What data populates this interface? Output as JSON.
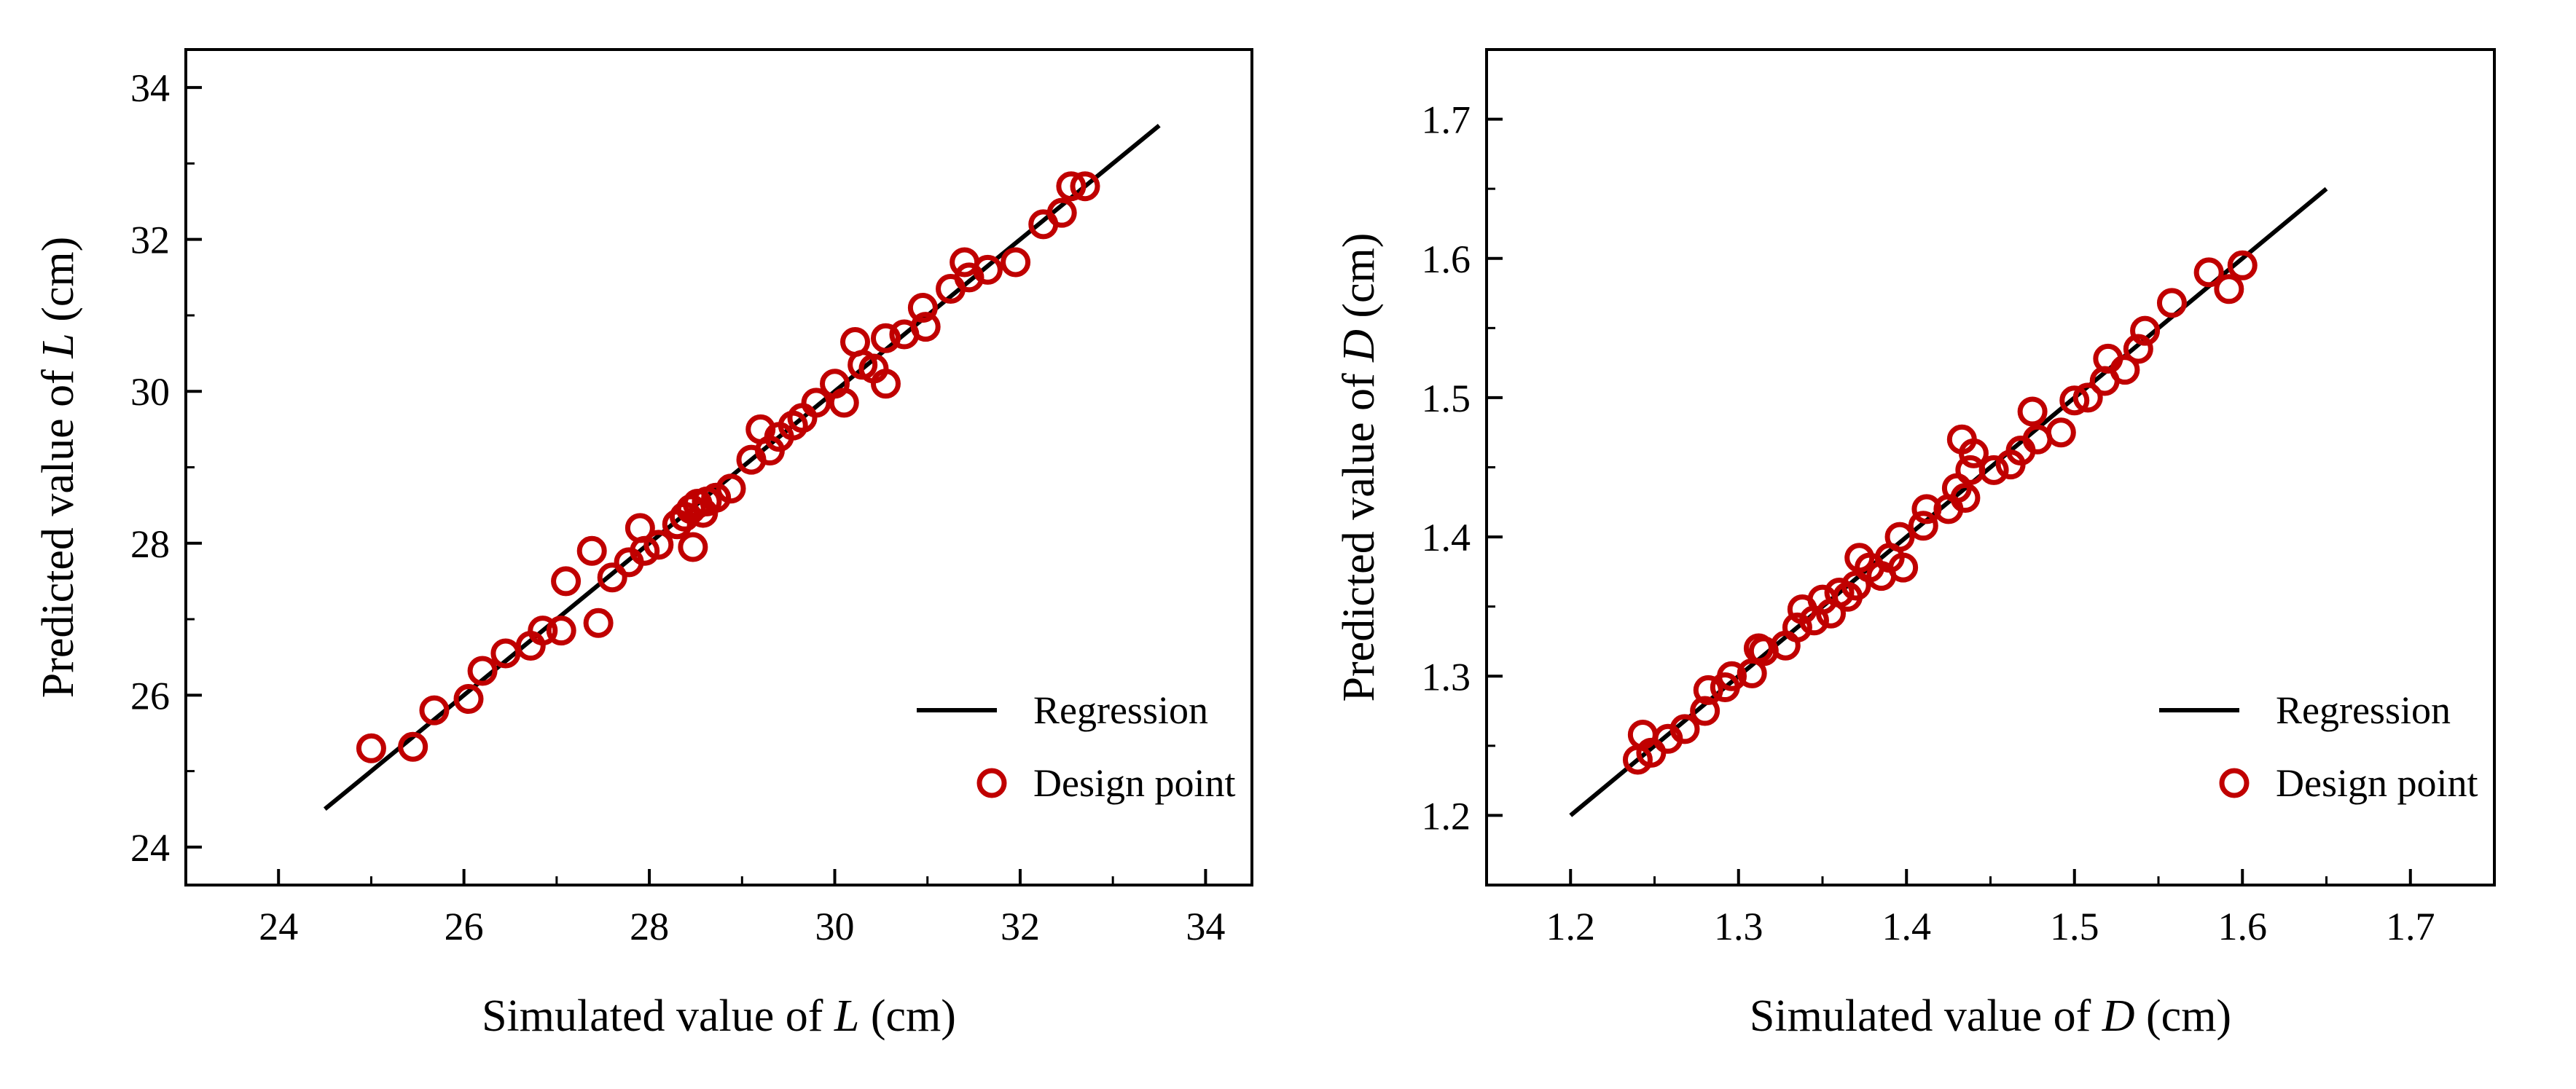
{
  "chart_data": [
    {
      "type": "scatter",
      "id": "left",
      "xlabel": {
        "prefix": "Simulated value of ",
        "var": "L",
        "suffix": " (cm)"
      },
      "ylabel": {
        "prefix": "Predicted value of ",
        "var": "L",
        "suffix": " (cm)"
      },
      "xlim": [
        23,
        34.5
      ],
      "ylim": [
        23.5,
        34.5
      ],
      "xticks": [
        24,
        26,
        28,
        30,
        32,
        34
      ],
      "yticks": [
        24,
        26,
        28,
        30,
        32,
        34
      ],
      "xtick_labels": [
        "24",
        "26",
        "28",
        "30",
        "32",
        "34"
      ],
      "ytick_labels": [
        "24",
        "26",
        "28",
        "30",
        "32",
        "34"
      ],
      "legend": {
        "position": "bottom-right",
        "entries": [
          "Regression",
          "Design point"
        ]
      },
      "regression": {
        "name": "Regression",
        "x": [
          24.5,
          33.5
        ],
        "y": [
          24.5,
          33.5
        ],
        "color": "#000000"
      },
      "series": [
        {
          "name": "Design point",
          "marker": "circle-open",
          "color": "#c00000",
          "points": [
            [
              25.0,
              25.3
            ],
            [
              25.45,
              25.32
            ],
            [
              25.68,
              25.8
            ],
            [
              26.05,
              25.95
            ],
            [
              26.2,
              26.32
            ],
            [
              26.45,
              26.55
            ],
            [
              26.72,
              26.65
            ],
            [
              26.85,
              26.85
            ],
            [
              27.05,
              26.85
            ],
            [
              27.1,
              27.5
            ],
            [
              27.38,
              27.9
            ],
            [
              27.45,
              26.95
            ],
            [
              27.6,
              27.55
            ],
            [
              27.78,
              27.75
            ],
            [
              27.9,
              28.2
            ],
            [
              27.95,
              27.9
            ],
            [
              28.1,
              27.98
            ],
            [
              28.3,
              28.25
            ],
            [
              28.38,
              28.35
            ],
            [
              28.45,
              28.45
            ],
            [
              28.47,
              27.95
            ],
            [
              28.52,
              28.52
            ],
            [
              28.58,
              28.4
            ],
            [
              28.62,
              28.55
            ],
            [
              28.72,
              28.6
            ],
            [
              28.88,
              28.72
            ],
            [
              29.1,
              29.1
            ],
            [
              29.2,
              29.5
            ],
            [
              29.3,
              29.22
            ],
            [
              29.4,
              29.4
            ],
            [
              29.55,
              29.55
            ],
            [
              29.65,
              29.65
            ],
            [
              29.8,
              29.85
            ],
            [
              30.0,
              30.1
            ],
            [
              30.1,
              29.85
            ],
            [
              30.22,
              30.65
            ],
            [
              30.3,
              30.35
            ],
            [
              30.42,
              30.3
            ],
            [
              30.55,
              30.1
            ],
            [
              30.55,
              30.7
            ],
            [
              30.75,
              30.75
            ],
            [
              30.95,
              31.1
            ],
            [
              30.98,
              30.85
            ],
            [
              31.25,
              31.35
            ],
            [
              31.4,
              31.7
            ],
            [
              31.45,
              31.5
            ],
            [
              31.65,
              31.6
            ],
            [
              31.95,
              31.7
            ],
            [
              32.25,
              32.2
            ],
            [
              32.45,
              32.35
            ],
            [
              32.55,
              32.7
            ],
            [
              32.7,
              32.7
            ]
          ]
        }
      ]
    },
    {
      "type": "scatter",
      "id": "right",
      "xlabel": {
        "prefix": "Simulated value of ",
        "var": "D",
        "suffix": " (cm)"
      },
      "ylabel": {
        "prefix": "Predicted value of ",
        "var": "D",
        "suffix": " (cm)"
      },
      "xlim": [
        1.15,
        1.75
      ],
      "ylim": [
        1.15,
        1.75
      ],
      "xticks": [
        1.2,
        1.3,
        1.4,
        1.5,
        1.6,
        1.7
      ],
      "yticks": [
        1.2,
        1.3,
        1.4,
        1.5,
        1.6,
        1.7
      ],
      "xtick_labels": [
        "1.2",
        "1.3",
        "1.4",
        "1.5",
        "1.6",
        "1.7"
      ],
      "ytick_labels": [
        "1.2",
        "1.3",
        "1.4",
        "1.5",
        "1.6",
        "1.7"
      ],
      "legend": {
        "position": "bottom-right",
        "entries": [
          "Regression",
          "Design point"
        ]
      },
      "regression": {
        "name": "Regression",
        "x": [
          1.2,
          1.65
        ],
        "y": [
          1.2,
          1.65
        ],
        "color": "#000000"
      },
      "series": [
        {
          "name": "Design point",
          "marker": "circle-open",
          "color": "#c00000",
          "points": [
            [
              1.24,
              1.24
            ],
            [
              1.243,
              1.258
            ],
            [
              1.248,
              1.245
            ],
            [
              1.258,
              1.255
            ],
            [
              1.268,
              1.262
            ],
            [
              1.28,
              1.275
            ],
            [
              1.282,
              1.29
            ],
            [
              1.292,
              1.292
            ],
            [
              1.296,
              1.3
            ],
            [
              1.308,
              1.302
            ],
            [
              1.312,
              1.32
            ],
            [
              1.315,
              1.318
            ],
            [
              1.328,
              1.322
            ],
            [
              1.335,
              1.335
            ],
            [
              1.338,
              1.348
            ],
            [
              1.345,
              1.34
            ],
            [
              1.35,
              1.355
            ],
            [
              1.355,
              1.345
            ],
            [
              1.36,
              1.36
            ],
            [
              1.365,
              1.357
            ],
            [
              1.37,
              1.365
            ],
            [
              1.372,
              1.385
            ],
            [
              1.378,
              1.378
            ],
            [
              1.385,
              1.372
            ],
            [
              1.39,
              1.385
            ],
            [
              1.396,
              1.4
            ],
            [
              1.398,
              1.378
            ],
            [
              1.41,
              1.408
            ],
            [
              1.412,
              1.42
            ],
            [
              1.425,
              1.42
            ],
            [
              1.43,
              1.435
            ],
            [
              1.433,
              1.47
            ],
            [
              1.435,
              1.428
            ],
            [
              1.438,
              1.448
            ],
            [
              1.44,
              1.46
            ],
            [
              1.452,
              1.448
            ],
            [
              1.462,
              1.452
            ],
            [
              1.468,
              1.462
            ],
            [
              1.475,
              1.49
            ],
            [
              1.478,
              1.47
            ],
            [
              1.492,
              1.475
            ],
            [
              1.5,
              1.498
            ],
            [
              1.508,
              1.5
            ],
            [
              1.518,
              1.512
            ],
            [
              1.52,
              1.528
            ],
            [
              1.53,
              1.52
            ],
            [
              1.538,
              1.535
            ],
            [
              1.542,
              1.548
            ],
            [
              1.558,
              1.568
            ],
            [
              1.58,
              1.59
            ],
            [
              1.592,
              1.578
            ],
            [
              1.6,
              1.595
            ]
          ]
        }
      ]
    }
  ]
}
